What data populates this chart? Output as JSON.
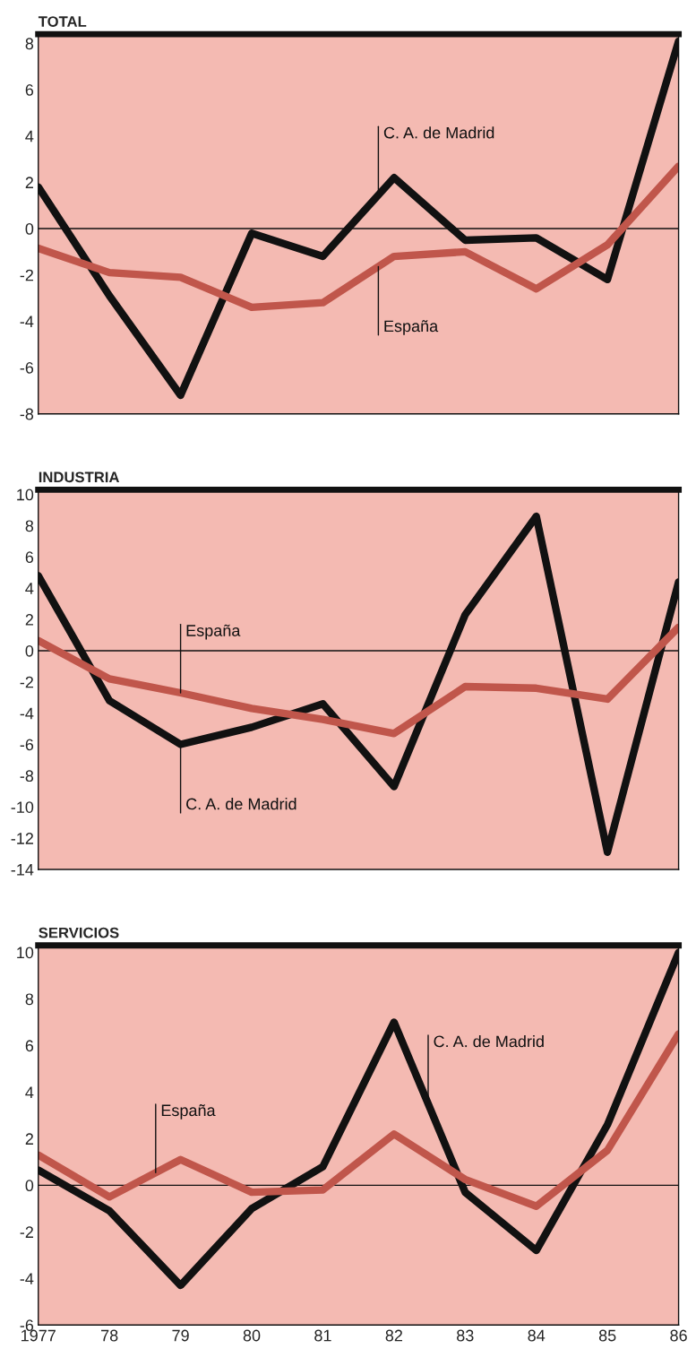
{
  "chart_data": [
    {
      "type": "line",
      "title": "TOTAL",
      "x": [
        1977,
        1978,
        1979,
        1980,
        1981,
        1982,
        1983,
        1984,
        1985,
        1986
      ],
      "series": [
        {
          "color": "#111111",
          "values": [
            1.8,
            -2.9,
            -7.2,
            -0.2,
            -1.2,
            2.2,
            -0.5,
            -0.4,
            -2.2,
            8.1
          ]
        },
        {
          "color": "#c0564b",
          "values": [
            -0.85,
            -1.9,
            -2.1,
            -3.4,
            -3.2,
            -1.2,
            -1.0,
            -2.6,
            -0.7,
            2.7
          ]
        }
      ],
      "annotations": [
        {
          "text": "C. A. de Madrid",
          "x": 1981.78,
          "y": 1.45
        },
        {
          "text": "España",
          "x": 1981.78,
          "y": -1.64
        }
      ],
      "ref_lines": [
        {
          "axis": "y",
          "value": 0,
          "color": "#111111"
        }
      ],
      "xlim": [
        1977,
        1986
      ],
      "ylim": [
        -8,
        8.4
      ],
      "yticks": [
        -8,
        -6,
        -4,
        -2,
        0,
        2,
        4,
        6,
        8
      ],
      "xticks": [
        {
          "value": 1978,
          "label": null
        },
        {
          "value": 1979,
          "label": null
        },
        {
          "value": 1980,
          "label": null
        },
        {
          "value": 1981,
          "label": null
        },
        {
          "value": 1982,
          "label": null
        },
        {
          "value": 1983,
          "label": null
        },
        {
          "value": 1984,
          "label": null
        },
        {
          "value": 1985,
          "label": null
        }
      ],
      "tick_labels": "y"
    },
    {
      "type": "line",
      "title": "INDUSTRIA",
      "x": [
        1977,
        1978,
        1979,
        1980,
        1981,
        1982,
        1983,
        1984,
        1985,
        1986
      ],
      "series": [
        {
          "color": "#111111",
          "values": [
            4.8,
            -3.2,
            -6.0,
            -4.9,
            -3.4,
            -8.7,
            2.3,
            8.6,
            -12.9,
            4.4
          ]
        },
        {
          "color": "#c0564b",
          "values": [
            0.65,
            -1.8,
            -2.7,
            -3.7,
            -4.4,
            -5.3,
            -2.3,
            -2.4,
            -3.1,
            1.5
          ]
        }
      ],
      "annotations": [
        {
          "text": "España",
          "x": 1979.0,
          "y": -2.7
        },
        {
          "text": "C. A. de Madrid",
          "x": 1979.0,
          "y": -6.0
        }
      ],
      "ref_lines": [
        {
          "axis": "y",
          "value": 0,
          "color": "#111111"
        }
      ],
      "xlim": [
        1977,
        1986
      ],
      "ylim": [
        -14,
        10.3
      ],
      "yticks": [
        -14,
        -12,
        -10,
        -8,
        -6,
        -4,
        -2,
        0,
        2,
        4,
        6,
        8,
        10
      ],
      "xticks": [
        {
          "value": 1978,
          "label": null
        },
        {
          "value": 1979,
          "label": null
        },
        {
          "value": 1980,
          "label": null
        },
        {
          "value": 1981,
          "label": null
        },
        {
          "value": 1982,
          "label": null
        },
        {
          "value": 1983,
          "label": null
        },
        {
          "value": 1984,
          "label": null
        },
        {
          "value": 1985,
          "label": null
        }
      ],
      "tick_labels": "y"
    },
    {
      "type": "line",
      "title": "SERVICIOS",
      "x": [
        1977,
        1978,
        1979,
        1980,
        1981,
        1982,
        1983,
        1984,
        1985,
        1986
      ],
      "series": [
        {
          "color": "#111111",
          "values": [
            0.65,
            -1.1,
            -4.3,
            -1.0,
            0.8,
            7.0,
            -0.3,
            -2.8,
            2.6,
            10.0
          ]
        },
        {
          "color": "#c0564b",
          "values": [
            1.3,
            -0.5,
            1.1,
            -0.3,
            -0.2,
            2.2,
            0.25,
            -0.9,
            1.5,
            6.5
          ]
        }
      ],
      "annotations": [
        {
          "text": "España",
          "x": 1978.65,
          "y": 0.54
        },
        {
          "text": "C. A. de Madrid",
          "x": 1982.48,
          "y": 3.5
        }
      ],
      "ref_lines": [
        {
          "axis": "y",
          "value": 0,
          "color": "#111111"
        }
      ],
      "xlim": [
        1977,
        1986
      ],
      "ylim": [
        -6,
        10.3
      ],
      "yticks": [
        -6,
        -4,
        -2,
        0,
        2,
        4,
        6,
        8,
        10
      ],
      "xticks": [
        {
          "value": 1977,
          "label": "1977"
        },
        {
          "value": 1978,
          "label": "78"
        },
        {
          "value": 1979,
          "label": "79"
        },
        {
          "value": 1980,
          "label": "80"
        },
        {
          "value": 1981,
          "label": "81"
        },
        {
          "value": 1982,
          "label": "82"
        },
        {
          "value": 1983,
          "label": "83"
        },
        {
          "value": 1984,
          "label": "84"
        },
        {
          "value": 1985,
          "label": "85"
        },
        {
          "value": 1986,
          "label": "86"
        }
      ]
    }
  ]
}
